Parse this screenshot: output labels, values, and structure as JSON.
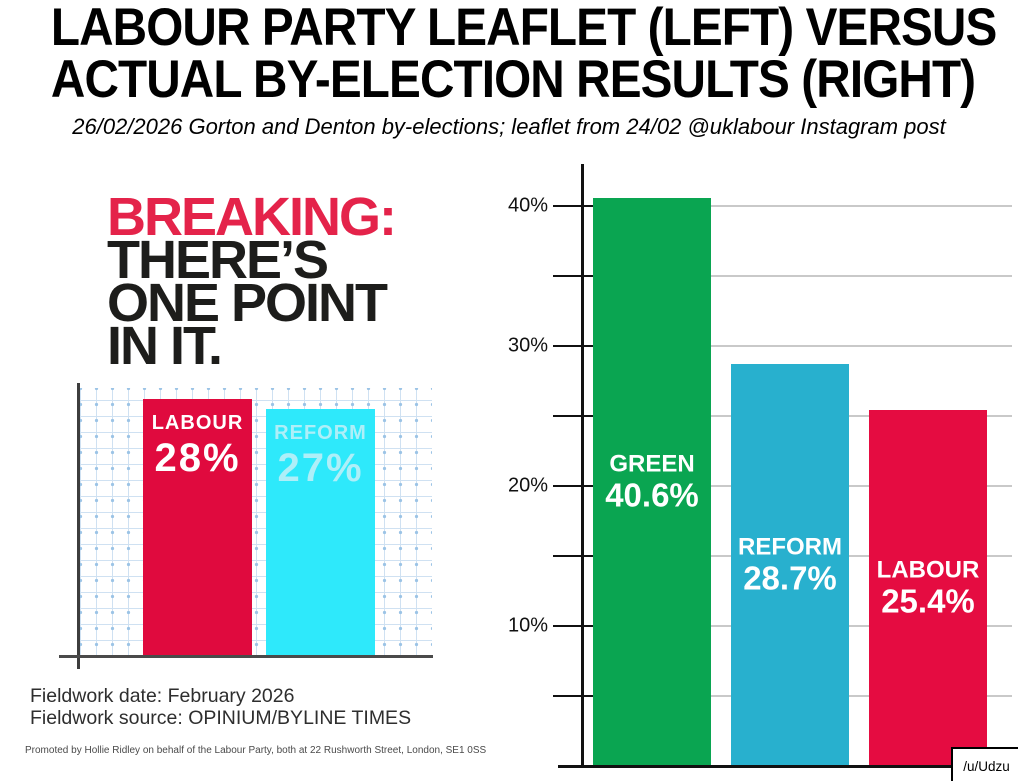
{
  "page": {
    "title_line1": "LABOUR PARTY LEAFLET (LEFT) VERSUS",
    "title_line2": "ACTUAL BY-ELECTION RESULTS (RIGHT)",
    "subtitle": "26/02/2026 Gorton and Denton by-elections; leaflet from 24/02 @uklabour Instagram post",
    "watermark": "/u/Udzu"
  },
  "leaflet": {
    "headline_line1": "BREAKING:",
    "headline_line2": "THERE’S",
    "headline_line3": "ONE POINT",
    "headline_line4": "IN IT.",
    "accent_color": "#e4234a",
    "headline_color": "#1d1d1b",
    "fieldwork_date": "Fieldwork date: February 2026",
    "fieldwork_source": "Fieldwork source: OPINIUM/BYLINE TIMES",
    "promoted": "Promoted by Hollie Ridley on behalf of the Labour Party, both at 22 Rushworth Street, London, SE1 0SS"
  },
  "chart_data": [
    {
      "id": "leaflet-poll",
      "type": "bar",
      "title": "Labour leaflet poll bar chart",
      "categories": [
        "LABOUR",
        "REFORM"
      ],
      "values": [
        28,
        27
      ],
      "data_labels": [
        "28%",
        "27%"
      ],
      "bar_colors": [
        "#e00a3e",
        "#2ee9fb"
      ],
      "label_colors": [
        "#ffffff",
        "#aeeff8"
      ],
      "xlabel": "",
      "ylabel": "",
      "ylim": [
        0,
        29.2
      ],
      "grid": "blue graph-paper squares",
      "axes": "plain black L-shaped axes, no tick labels",
      "legend": "none"
    },
    {
      "id": "by-election-results",
      "type": "bar",
      "title": "Actual by-election results bar chart",
      "categories": [
        "GREEN",
        "REFORM",
        "LABOUR"
      ],
      "values": [
        40.6,
        28.7,
        25.4
      ],
      "data_labels": [
        "40.6%",
        "28.7%",
        "25.4%"
      ],
      "bar_colors": [
        "#0aa551",
        "#28b0ce",
        "#e50c41"
      ],
      "label_color": "#ffffff",
      "xlabel": "",
      "ylabel": "",
      "ylim": [
        0,
        43
      ],
      "yticks_labeled": [
        10,
        20,
        30,
        40
      ],
      "ytick_labels": [
        "10%",
        "20%",
        "30%",
        "40%"
      ],
      "yticks_minor_step": 5,
      "grid": "horizontal gray gridlines every 5%",
      "legend": "none, labels inside bars"
    }
  ]
}
